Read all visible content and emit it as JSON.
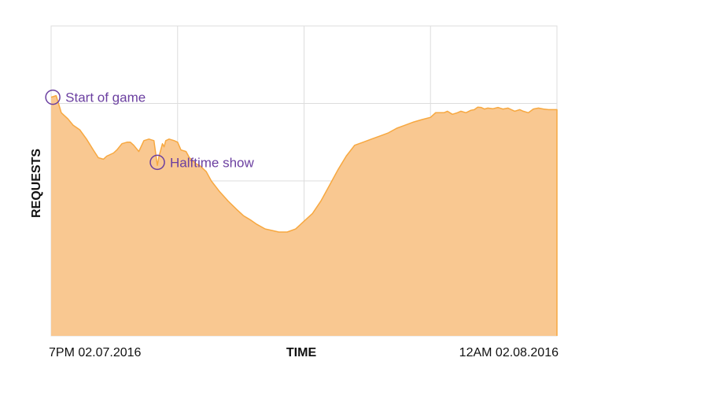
{
  "chart_data": {
    "type": "area",
    "title": "",
    "xlabel": "TIME",
    "ylabel": "REQUESTS",
    "x_tick_labels": [
      "7PM 02.07.2016",
      "12AM 02.08.2016"
    ],
    "y_tick_labels": [],
    "grid": true,
    "x_unit": "minutes after 7PM 02.07.2016",
    "xlim": [
      0,
      300
    ],
    "ylim": [
      0,
      100
    ],
    "series": [
      {
        "name": "",
        "color": "#f7a840",
        "fill": "#f9c891",
        "x": [
          0,
          3,
          6,
          10,
          13,
          17,
          21,
          25,
          28,
          31,
          33,
          35,
          37,
          39,
          42,
          45,
          47,
          49,
          52,
          55,
          58,
          61,
          63,
          64,
          66,
          67,
          68,
          70,
          73,
          75,
          77,
          80,
          82,
          84,
          86,
          88,
          90,
          92,
          95,
          100,
          105,
          110,
          114,
          118,
          122,
          127,
          131,
          135,
          140,
          145,
          150,
          155,
          160,
          165,
          170,
          175,
          180,
          185,
          190,
          195,
          200,
          205,
          210,
          215,
          220,
          225,
          228,
          230,
          233,
          235,
          238,
          241,
          243,
          246,
          249,
          251,
          253,
          255,
          257,
          259,
          262,
          265,
          268,
          271,
          275,
          278,
          280,
          283,
          286,
          289,
          292,
          295,
          297,
          300
        ],
        "y": [
          77,
          77.5,
          72,
          70,
          68,
          66.5,
          63.5,
          60,
          57.5,
          57,
          58,
          58.5,
          59,
          60,
          62,
          62.5,
          62.5,
          61.5,
          59.5,
          63,
          63.5,
          63,
          55,
          58,
          62,
          61,
          63,
          63.5,
          63,
          62.5,
          60,
          59.5,
          57.5,
          56.5,
          55.5,
          55,
          54,
          53,
          50,
          46.5,
          43.5,
          40.8,
          38.8,
          37.5,
          36,
          34.5,
          34,
          33.5,
          33.5,
          34.5,
          37,
          39.5,
          43.5,
          48.5,
          53.5,
          58,
          61.5,
          62.5,
          63.5,
          64.5,
          65.5,
          67,
          68,
          69,
          69.8,
          70.5,
          72,
          72,
          72,
          72.5,
          71.5,
          72,
          72.5,
          72,
          72.8,
          73,
          73.8,
          73.7,
          73.2,
          73.5,
          73.3,
          73.7,
          73.2,
          73.5,
          72.5,
          73,
          72.5,
          72,
          73.2,
          73.5,
          73.2,
          73,
          73,
          73
        ]
      }
    ],
    "annotations": [
      {
        "label": "Start of game",
        "x": 1,
        "y": 77
      },
      {
        "label": "Halftime show",
        "x": 63,
        "y": 56
      }
    ],
    "colors": {
      "line": "#f7a840",
      "fill": "#f9c891",
      "annotation": "#6b3fa0",
      "grid": "#dddddd"
    }
  }
}
